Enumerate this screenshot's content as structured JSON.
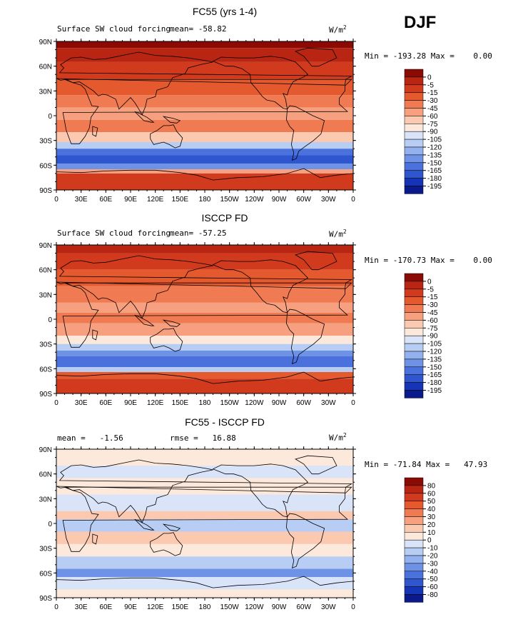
{
  "season": "DJF",
  "units": "W/m",
  "units_exp": "2",
  "chart_data": [
    {
      "type": "heatmap",
      "title": "FC55 (yrs 1-4)",
      "subtitle": "Surface SW cloud forcing",
      "mean_label": "mean=",
      "mean": "-58.82",
      "min_label": "Min =",
      "min": "-193.28",
      "max_label": "Max =",
      "max": "0.00",
      "legend": [
        "0",
        "-5",
        "-15",
        "-30",
        "-45",
        "-60",
        "-75",
        "-90",
        "-105",
        "-120",
        "-135",
        "-150",
        "-165",
        "-180",
        "-195"
      ],
      "colors": [
        "#8b0a04",
        "#b82512",
        "#d13a1c",
        "#e5592e",
        "#f07a51",
        "#f7a07f",
        "#fbc8b0",
        "#fde8dc",
        "#d9e4f8",
        "#b8cdf4",
        "#92b1ee",
        "#6d92e6",
        "#4b71dc",
        "#2f55cf",
        "#1634b6",
        "#0a1a8c"
      ]
    },
    {
      "type": "heatmap",
      "title": "ISCCP FD",
      "subtitle": "Surface SW cloud forcing",
      "mean_label": "mean=",
      "mean": "-57.25",
      "min_label": "Min =",
      "min": "-170.73",
      "max_label": "Max =",
      "max": "0.00",
      "legend": [
        "0",
        "-5",
        "-15",
        "-30",
        "-45",
        "-60",
        "-75",
        "-90",
        "-105",
        "-120",
        "-135",
        "-150",
        "-165",
        "-180",
        "-195"
      ],
      "colors": [
        "#8b0a04",
        "#b82512",
        "#d13a1c",
        "#e5592e",
        "#f07a51",
        "#f7a07f",
        "#fbc8b0",
        "#fde8dc",
        "#d9e4f8",
        "#b8cdf4",
        "#92b1ee",
        "#6d92e6",
        "#4b71dc",
        "#2f55cf",
        "#1634b6",
        "#0a1a8c"
      ]
    },
    {
      "type": "heatmap",
      "title": "FC55 - ISCCP FD",
      "subtitle": "",
      "mean_label": "mean =",
      "mean": "-1.56",
      "rmse_label": "rmse =",
      "rmse": "16.88",
      "min_label": "Min =",
      "min": "-71.84",
      "max_label": "Max =",
      "max": "47.93",
      "legend": [
        "80",
        "60",
        "50",
        "40",
        "30",
        "20",
        "10",
        "0",
        "-10",
        "-20",
        "-30",
        "-40",
        "-50",
        "-60",
        "-80"
      ],
      "colors": [
        "#8b0a04",
        "#b82512",
        "#d13a1c",
        "#e5592e",
        "#f07a51",
        "#f7a07f",
        "#fbc8b0",
        "#fde8dc",
        "#d9e4f8",
        "#b8cdf4",
        "#92b1ee",
        "#6d92e6",
        "#4b71dc",
        "#2f55cf",
        "#1634b6",
        "#0a1a8c"
      ]
    }
  ],
  "x_ticks": [
    "0",
    "30E",
    "60E",
    "90E",
    "120E",
    "150E",
    "180",
    "150W",
    "120W",
    "90W",
    "60W",
    "30W",
    "0"
  ],
  "y_ticks": [
    "90N",
    "60N",
    "30N",
    "0",
    "30S",
    "60S",
    "90S"
  ]
}
